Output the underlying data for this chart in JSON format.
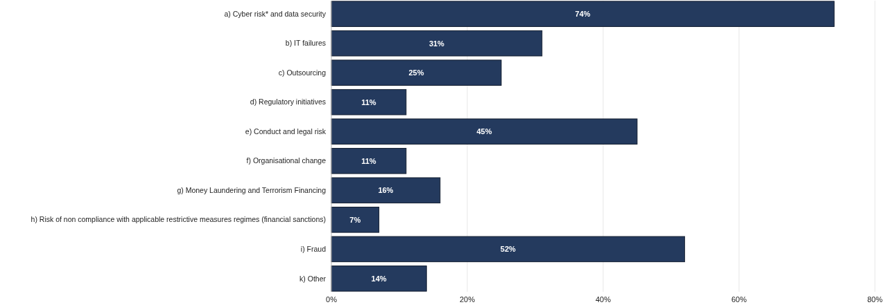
{
  "chart_data": {
    "type": "bar",
    "orientation": "horizontal",
    "categories": [
      "a) Cyber risk* and data security",
      "b) IT failures",
      "c) Outsourcing",
      "d) Regulatory initiatives",
      "e) Conduct and legal risk",
      "f) Organisational change",
      "g) Money Laundering and Terrorism Financing",
      "h) Risk of non compliance with applicable restrictive measures regimes (financial sanctions)",
      "i) Fraud",
      "k) Other"
    ],
    "values": [
      74,
      31,
      25,
      11,
      45,
      11,
      16,
      7,
      52,
      14
    ],
    "value_labels": [
      "74%",
      "31%",
      "25%",
      "11%",
      "45%",
      "11%",
      "16%",
      "7%",
      "52%",
      "14%"
    ],
    "color": "#243a5e",
    "xlim": [
      0,
      80
    ],
    "xticks": [
      {
        "value": 0,
        "label": "0%"
      },
      {
        "value": 20,
        "label": "20%"
      },
      {
        "value": 40,
        "label": "40%"
      },
      {
        "value": 60,
        "label": "60%"
      },
      {
        "value": 80,
        "label": "80%"
      }
    ],
    "grid": "x"
  }
}
